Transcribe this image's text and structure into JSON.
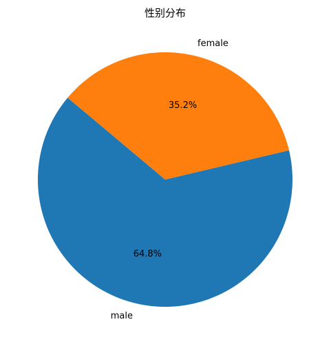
{
  "chart_data": {
    "type": "pie",
    "title": "性别分布",
    "categories": [
      "male",
      "female"
    ],
    "values": [
      64.8,
      35.2
    ],
    "percent_labels": [
      "64.8%",
      "35.2%"
    ],
    "colors": [
      "#1f77b4",
      "#ff7f0e"
    ],
    "start_angle_deg": 140,
    "direction": "counterclockwise",
    "legend": "none"
  }
}
